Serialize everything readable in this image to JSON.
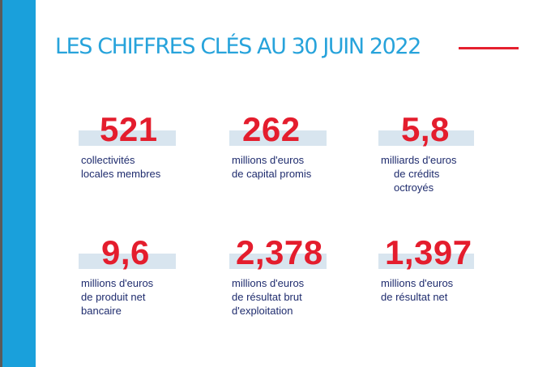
{
  "page": {
    "title": "LES CHIFFRES CLÉS AU 30 JUIN 2022",
    "colors": {
      "accent_blue": "#1aa0db",
      "title_blue": "#27a3db",
      "number_red": "#e41d2d",
      "label_navy": "#1f2c6e",
      "highlight": "#d8e5ef"
    }
  },
  "stats": [
    {
      "value": "521",
      "label_lines": [
        "collectivités",
        "locales membres"
      ]
    },
    {
      "value": "262",
      "label_lines": [
        "millions d'euros",
        "de capital promis"
      ]
    },
    {
      "value": "5,8",
      "label_lines": [
        "milliards d'euros",
        "de crédits",
        "octroyés"
      ]
    },
    {
      "value": "9,6",
      "label_lines": [
        "millions d'euros",
        "de produit net",
        "bancaire"
      ]
    },
    {
      "value": "2,378",
      "label_lines": [
        "millions d'euros",
        "de résultat brut",
        "d'exploitation"
      ]
    },
    {
      "value": "1,397",
      "label_lines": [
        "millions d'euros",
        "de résultat net"
      ]
    }
  ]
}
